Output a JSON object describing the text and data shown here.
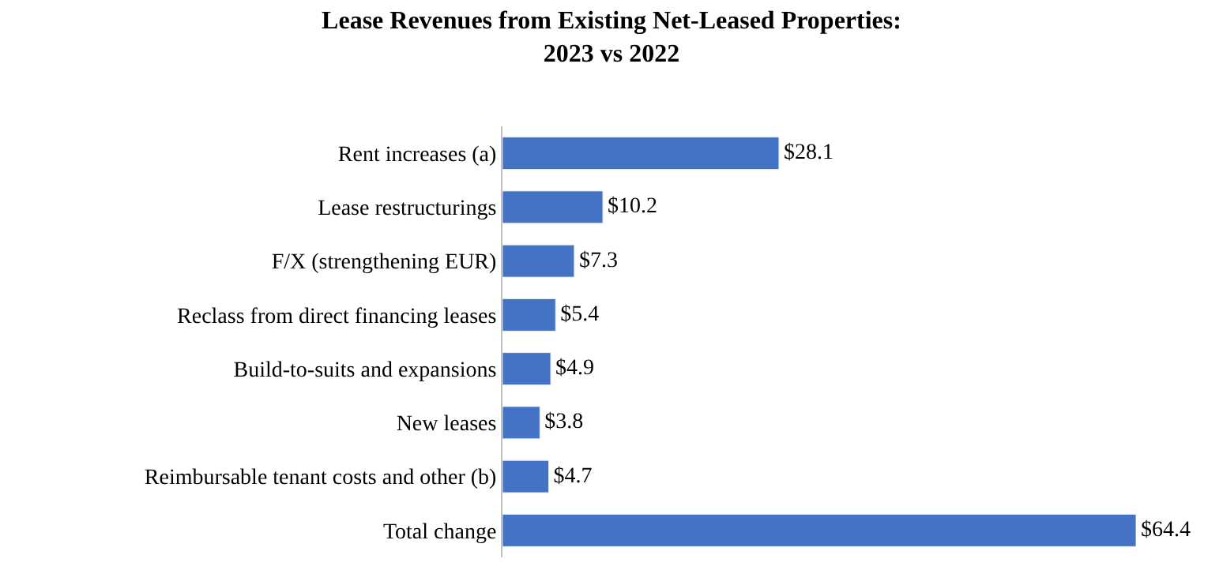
{
  "chart_data": {
    "type": "bar",
    "orientation": "horizontal",
    "title": "Lease Revenues from Existing Net-Leased Properties:\n2023 vs 2022",
    "categories": [
      "Rent increases (a)",
      "Lease restructurings",
      "F/X (strengthening EUR)",
      "Reclass from direct financing leases",
      "Build-to-suits and expansions",
      "New leases",
      "Reimbursable tenant costs and other (b)",
      "Total change"
    ],
    "values": [
      28.1,
      10.2,
      7.3,
      5.4,
      4.9,
      3.8,
      4.7,
      64.4
    ],
    "value_labels": [
      "$28.1",
      "$10.2",
      "$7.3",
      "$5.4",
      "$4.9",
      "$3.8",
      "$4.7",
      "$64.4"
    ],
    "color": "#4472c4",
    "tick_labels": "y"
  }
}
